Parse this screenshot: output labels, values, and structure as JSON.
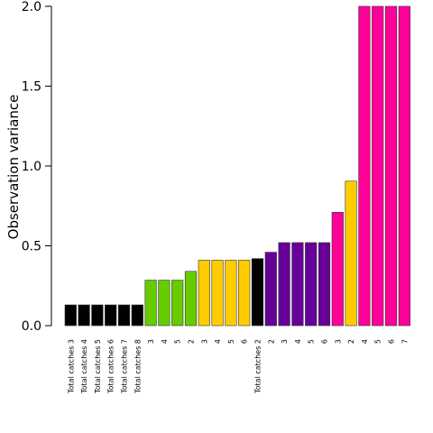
{
  "chart_data": {
    "type": "bar",
    "ylabel": "Observation variance",
    "xlabel": "",
    "ylim": [
      0,
      2.0
    ],
    "yticks": [
      "0.0",
      "0.5",
      "1.0",
      "1.5",
      "2.0"
    ],
    "ytick_values": [
      0,
      0.5,
      1.0,
      1.5,
      2.0
    ],
    "grid": false,
    "bars": [
      {
        "label": "Total catches 3",
        "value": 0.13,
        "color": "#000000"
      },
      {
        "label": "Total catches 4",
        "value": 0.13,
        "color": "#000000"
      },
      {
        "label": "Total catches 5",
        "value": 0.13,
        "color": "#000000"
      },
      {
        "label": "Total catches 6",
        "value": 0.13,
        "color": "#000000"
      },
      {
        "label": "Total catches 7",
        "value": 0.13,
        "color": "#000000"
      },
      {
        "label": "Total catches 8",
        "value": 0.13,
        "color": "#000000"
      },
      {
        "label": "3",
        "value": 0.285,
        "color": "#66cc00"
      },
      {
        "label": "4",
        "value": 0.285,
        "color": "#66cc00"
      },
      {
        "label": "5",
        "value": 0.285,
        "color": "#66cc00"
      },
      {
        "label": "2",
        "value": 0.34,
        "color": "#66cc00"
      },
      {
        "label": "3",
        "value": 0.41,
        "color": "#ffcc00"
      },
      {
        "label": "4",
        "value": 0.41,
        "color": "#ffcc00"
      },
      {
        "label": "5",
        "value": 0.41,
        "color": "#ffcc00"
      },
      {
        "label": "6",
        "value": 0.41,
        "color": "#ffcc00"
      },
      {
        "label": "Total catches 2",
        "value": 0.42,
        "color": "#000000"
      },
      {
        "label": "2",
        "value": 0.46,
        "color": "#660099"
      },
      {
        "label": "3",
        "value": 0.52,
        "color": "#660099"
      },
      {
        "label": "4",
        "value": 0.52,
        "color": "#660099"
      },
      {
        "label": "5",
        "value": 0.52,
        "color": "#660099"
      },
      {
        "label": "6",
        "value": 0.52,
        "color": "#660099"
      },
      {
        "label": "3",
        "value": 0.71,
        "color": "#ff0099"
      },
      {
        "label": "2",
        "value": 0.905,
        "color": "#ffcc00"
      },
      {
        "label": "4",
        "value": 2.0,
        "color": "#ff0099"
      },
      {
        "label": "5",
        "value": 2.0,
        "color": "#ff0099"
      },
      {
        "label": "6",
        "value": 2.0,
        "color": "#ff0099"
      },
      {
        "label": "7",
        "value": 2.0,
        "color": "#ff0099"
      }
    ]
  }
}
